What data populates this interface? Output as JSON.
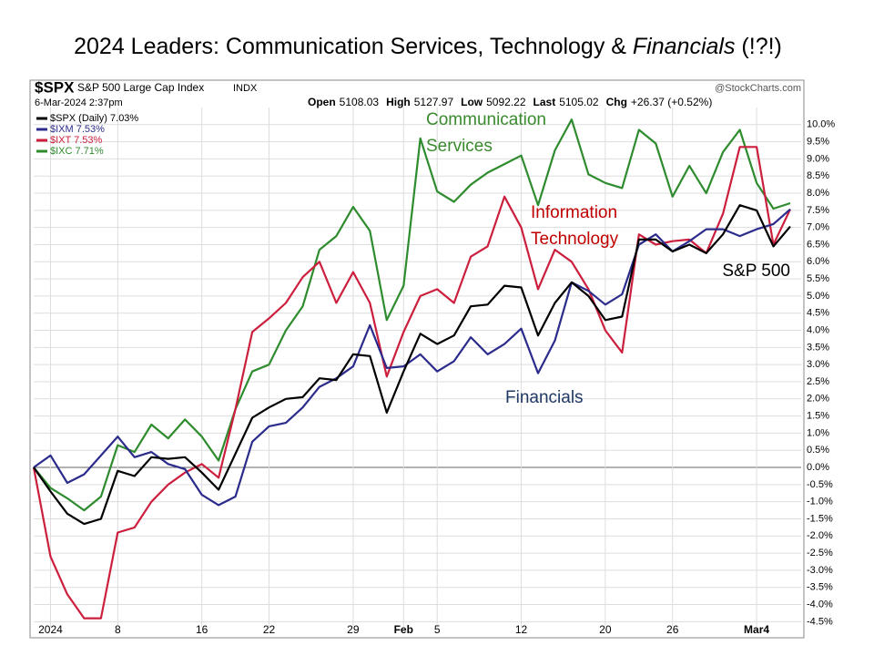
{
  "title_parts": [
    "2024 Leaders: Communication Services, Technology &",
    "Financials",
    "(!?!)"
  ],
  "chart_data": {
    "type": "line",
    "header": {
      "symbol": "$SPX",
      "name": "S&P 500 Large Cap Index",
      "exchange": "INDX",
      "date": "6-Mar-2024 2:37pm",
      "source": "@StockCharts.com",
      "quote": [
        {
          "label": "Open",
          "value": "5108.03"
        },
        {
          "label": "High",
          "value": "5127.97"
        },
        {
          "label": "Low",
          "value": "5092.22"
        },
        {
          "label": "Last",
          "value": "5105.02"
        },
        {
          "label": "Chg",
          "value": "+26.37 (+0.52%)"
        }
      ]
    },
    "categories": [
      null,
      "2024",
      null,
      null,
      null,
      "8",
      null,
      null,
      null,
      null,
      "16",
      null,
      null,
      null,
      "22",
      null,
      null,
      null,
      null,
      "29",
      null,
      null,
      "Feb",
      null,
      "5",
      null,
      null,
      null,
      null,
      "12",
      null,
      null,
      null,
      null,
      "20",
      null,
      null,
      null,
      "26",
      null,
      null,
      null,
      null,
      "Mar4",
      null,
      null
    ],
    "series": [
      {
        "name": "$SPX (Daily) 7.03%",
        "color": "#000000",
        "values": [
          0,
          -0.7,
          -1.35,
          -1.65,
          -1.5,
          -0.1,
          -0.25,
          0.3,
          0.25,
          0.3,
          -0.15,
          -0.65,
          0.4,
          1.45,
          1.75,
          2.0,
          2.05,
          2.6,
          2.55,
          3.3,
          3.25,
          1.6,
          2.8,
          3.9,
          3.6,
          3.85,
          4.7,
          4.75,
          5.3,
          5.25,
          3.85,
          4.8,
          5.4,
          5.0,
          4.3,
          4.4,
          6.65,
          6.65,
          6.3,
          6.5,
          6.25,
          6.8,
          7.65,
          7.5,
          6.45,
          7.03
        ]
      },
      {
        "name": "$IXM 7.53%",
        "color": "#2b2b8c",
        "values": [
          0,
          0.35,
          -0.45,
          -0.2,
          0.35,
          0.9,
          0.3,
          0.45,
          0.1,
          -0.05,
          -0.8,
          -1.1,
          -0.85,
          0.75,
          1.2,
          1.3,
          1.75,
          2.35,
          2.6,
          2.95,
          4.15,
          2.9,
          2.95,
          3.3,
          2.8,
          3.1,
          3.8,
          3.3,
          3.6,
          4.05,
          2.75,
          3.7,
          5.4,
          5.15,
          4.75,
          5.05,
          6.5,
          6.8,
          6.3,
          6.6,
          6.95,
          6.95,
          6.75,
          6.95,
          7.1,
          7.53
        ]
      },
      {
        "name": "$IXT 7.53%",
        "color": "#cc1f3d",
        "values": [
          0,
          -2.6,
          -3.7,
          -4.4,
          -4.4,
          -1.9,
          -1.75,
          -1.0,
          -0.5,
          -0.15,
          0.1,
          -0.3,
          1.7,
          3.95,
          4.35,
          4.8,
          5.55,
          6.0,
          4.8,
          5.7,
          4.8,
          2.65,
          3.95,
          5.0,
          5.2,
          4.8,
          6.15,
          6.45,
          7.9,
          7.0,
          5.2,
          6.35,
          6.0,
          5.2,
          4.0,
          3.35,
          6.8,
          6.5,
          6.6,
          6.65,
          6.25,
          7.4,
          9.35,
          9.35,
          6.5,
          7.53
        ]
      },
      {
        "name": "$IXC 7.71%",
        "color": "#2e8b2e",
        "values": [
          0,
          -0.6,
          -0.9,
          -1.25,
          -0.85,
          0.65,
          0.45,
          1.25,
          0.85,
          1.4,
          0.9,
          0.2,
          1.7,
          2.8,
          3.0,
          4.0,
          4.7,
          6.35,
          6.75,
          7.6,
          6.9,
          4.3,
          5.3,
          9.6,
          8.05,
          7.75,
          8.25,
          8.6,
          8.85,
          9.1,
          7.65,
          9.25,
          10.15,
          8.55,
          8.3,
          8.15,
          9.85,
          9.45,
          7.9,
          8.8,
          8.0,
          9.2,
          9.85,
          8.3,
          7.55,
          7.71
        ]
      }
    ],
    "ylim": [
      -4.65,
      10.5
    ],
    "yticks": [
      {
        "value": -4.5,
        "label": "-4.5%"
      },
      {
        "value": -4,
        "label": "-4.0%"
      },
      {
        "value": -3.5,
        "label": "-3.5%"
      },
      {
        "value": -3,
        "label": "-3.0%"
      },
      {
        "value": -2.5,
        "label": "-2.5%"
      },
      {
        "value": -2,
        "label": "-2.0%"
      },
      {
        "value": -1.5,
        "label": "-1.5%"
      },
      {
        "value": -1,
        "label": "-1.0%"
      },
      {
        "value": -0.5,
        "label": "-0.5%"
      },
      {
        "value": 0,
        "label": "0.0%"
      },
      {
        "value": 0.5,
        "label": "0.5%"
      },
      {
        "value": 1,
        "label": "1.0%"
      },
      {
        "value": 1.5,
        "label": "1.5%"
      },
      {
        "value": 2,
        "label": "2.0%"
      },
      {
        "value": 2.5,
        "label": "2.5%"
      },
      {
        "value": 3,
        "label": "3.0%"
      },
      {
        "value": 3.5,
        "label": "3.5%"
      },
      {
        "value": 4,
        "label": "4.0%"
      },
      {
        "value": 4.5,
        "label": "4.5%"
      },
      {
        "value": 5,
        "label": "5.0%"
      },
      {
        "value": 5.5,
        "label": "5.5%"
      },
      {
        "value": 6,
        "label": "6.0%"
      },
      {
        "value": 6.5,
        "label": "6.5%"
      },
      {
        "value": 7,
        "label": "7.0%"
      },
      {
        "value": 7.5,
        "label": "7.5%"
      },
      {
        "value": 8,
        "label": "8.0%"
      },
      {
        "value": 8.5,
        "label": "8.5%"
      },
      {
        "value": 9,
        "label": "9.0%"
      },
      {
        "value": 9.5,
        "label": "9.5%"
      },
      {
        "value": 10,
        "label": "10.0%"
      }
    ],
    "grid": true,
    "annotations": [
      {
        "lines": [
          "Communication",
          "Services"
        ],
        "color": "#3a8a2e"
      },
      {
        "lines": [
          "Information",
          "Technology"
        ],
        "color": "#c00000"
      },
      {
        "lines": [
          "S&P 500"
        ],
        "color": "#000000"
      },
      {
        "lines": [
          "Financials"
        ],
        "color": "#1f3864"
      }
    ]
  }
}
